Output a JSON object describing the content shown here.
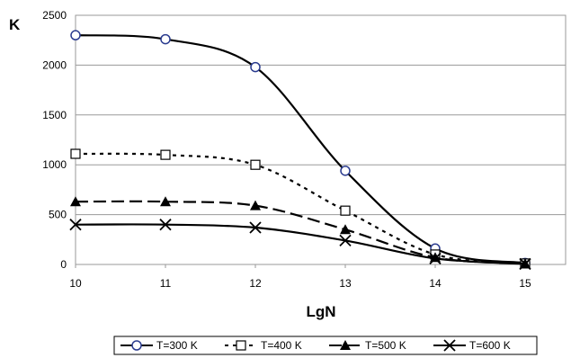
{
  "chart_data": {
    "type": "line",
    "title": "",
    "xlabel": "LgN",
    "ylabel": "K",
    "x": [
      10,
      11,
      12,
      13,
      14,
      15
    ],
    "xlim": [
      10,
      15.45
    ],
    "ylim": [
      0,
      2500
    ],
    "xticks": [
      "10",
      "11",
      "12",
      "13",
      "14",
      "15"
    ],
    "yticks": [
      "0",
      "500",
      "1000",
      "1500",
      "2000",
      "2500"
    ],
    "grid": "horizontal",
    "legend_position": "bottom",
    "series": [
      {
        "name": "T=300 K",
        "values": [
          2300,
          2260,
          1980,
          940,
          160,
          15
        ],
        "dash": "solid",
        "marker": "circle",
        "color": "#000000"
      },
      {
        "name": "T=400 K",
        "values": [
          1110,
          1100,
          1000,
          540,
          100,
          10
        ],
        "dash": "dotted",
        "marker": "square",
        "color": "#000000"
      },
      {
        "name": "T=500 K",
        "values": [
          630,
          630,
          590,
          350,
          70,
          8
        ],
        "dash": "dashed",
        "marker": "triangle",
        "color": "#000000"
      },
      {
        "name": "T=600 K",
        "values": [
          400,
          400,
          370,
          240,
          60,
          5
        ],
        "dash": "solid",
        "marker": "x",
        "color": "#000000"
      }
    ]
  }
}
